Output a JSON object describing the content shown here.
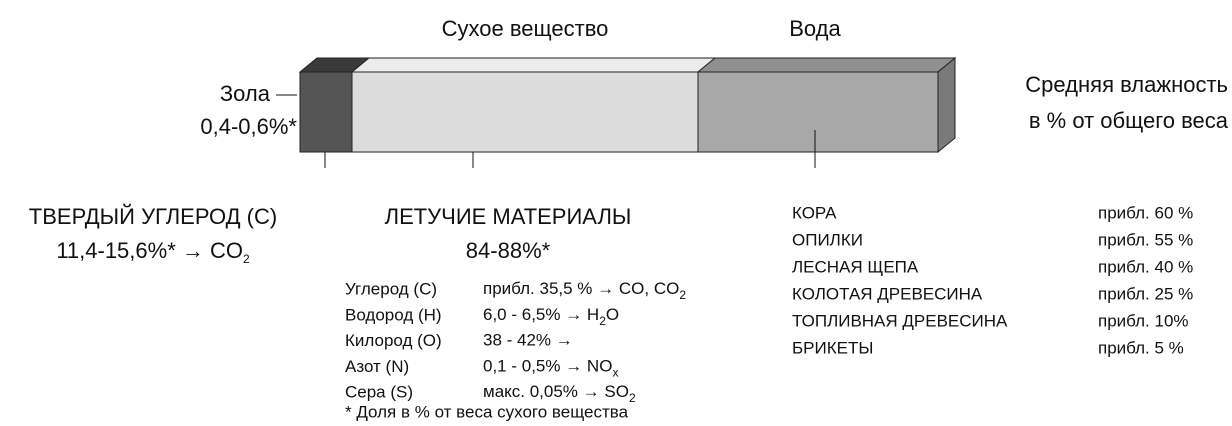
{
  "header": {
    "dry_matter": "Сухое вещество",
    "water": "Вода"
  },
  "ash": {
    "label": "Зола",
    "value": "0,4-0,6%*"
  },
  "moisture": {
    "line1": "Средняя влажность",
    "line2": "в % от общего веса"
  },
  "solid_carbon": {
    "title": "ТВЕРДЫЙ УГЛЕРОД (C)",
    "value": "11,4-15,6%* → CO",
    "sub": "2"
  },
  "volatiles": {
    "title": "ЛЕТУЧИЕ МАТЕРИАЛЫ",
    "value": "84-88%*",
    "rows": [
      {
        "element": "Углерод (C)",
        "amount": "прибл. 35,5 % → CO, CO",
        "sub": "2"
      },
      {
        "element": "Водород (H)",
        "amount": "6,0 - 6,5% → H",
        "sub": "2",
        "after": "O"
      },
      {
        "element": "Килород (O)",
        "amount": "38 - 42% →"
      },
      {
        "element": "Азот (N)",
        "amount": "0,1 - 0,5% → NO",
        "sub": "x"
      },
      {
        "element": "Сера (S)",
        "amount": "макс. 0,05% → SO",
        "sub": "2"
      }
    ]
  },
  "fuels": [
    {
      "name": "КОРА",
      "moisture": "прибл. 60 %"
    },
    {
      "name": "ОПИЛКИ",
      "moisture": "прибл. 55 %"
    },
    {
      "name": "ЛЕСНАЯ ЩЕПА",
      "moisture": "прибл. 40 %"
    },
    {
      "name": "КОЛОТАЯ ДРЕВЕСИНА",
      "moisture": "прибл. 25 %"
    },
    {
      "name": "ТОПЛИВНАЯ ДРЕВЕСИНА",
      "moisture": "прибл. 10%"
    },
    {
      "name": "БРИКЕТЫ",
      "moisture": "прибл. 5 %"
    }
  ],
  "footnote": "* Доля в % от веса сухого вещества"
}
